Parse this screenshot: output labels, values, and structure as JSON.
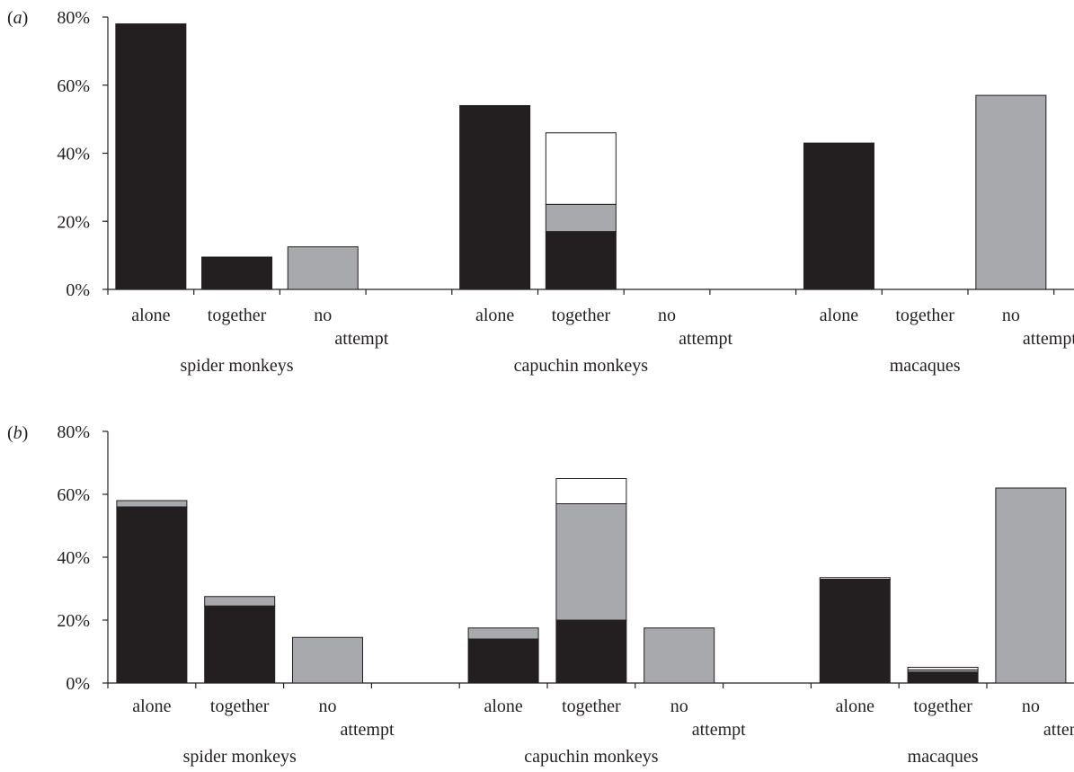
{
  "colors": {
    "alone_black": "#231f20",
    "grey": "#a7a9ac",
    "white": "#ffffff",
    "axis": "#231f20"
  },
  "chart_data": [
    {
      "type": "bar",
      "stacked": true,
      "panel_label": [
        "(",
        "a",
        ")"
      ],
      "ylim": [
        0,
        80
      ],
      "yticks": [
        "0%",
        "20%",
        "40%",
        "60%",
        "80%"
      ],
      "groups": [
        "spider monkeys",
        "capuchin monkeys",
        "macaques"
      ],
      "categories": [
        [
          "alone"
        ],
        [
          "together"
        ],
        [
          "no",
          "attempt"
        ]
      ],
      "bars": [
        [
          [
            78,
            0,
            0
          ],
          [
            9.5,
            0,
            0
          ],
          [
            0,
            12.5,
            0
          ]
        ],
        [
          [
            54,
            0,
            0
          ],
          [
            17,
            8,
            21
          ],
          [
            0,
            0,
            0
          ]
        ],
        [
          [
            43,
            0,
            0
          ],
          [
            0,
            0,
            0
          ],
          [
            0,
            57,
            0
          ]
        ]
      ]
    },
    {
      "type": "bar",
      "stacked": true,
      "panel_label": [
        "(",
        "b",
        ")"
      ],
      "ylim": [
        0,
        80
      ],
      "yticks": [
        "0%",
        "20%",
        "40%",
        "60%",
        "80%"
      ],
      "groups": [
        "spider monkeys",
        "capuchin monkeys",
        "macaques"
      ],
      "categories": [
        [
          "alone"
        ],
        [
          "together"
        ],
        [
          "no",
          "attempt"
        ]
      ],
      "bars": [
        [
          [
            56,
            2,
            0
          ],
          [
            24.5,
            3,
            0
          ],
          [
            0,
            14.5,
            0
          ]
        ],
        [
          [
            14,
            3.5,
            0
          ],
          [
            20,
            37,
            8
          ],
          [
            0,
            17.5,
            0
          ]
        ],
        [
          [
            33,
            0,
            0.5
          ],
          [
            3.5,
            0.7,
            0.8
          ],
          [
            0,
            62,
            0
          ]
        ]
      ]
    }
  ]
}
